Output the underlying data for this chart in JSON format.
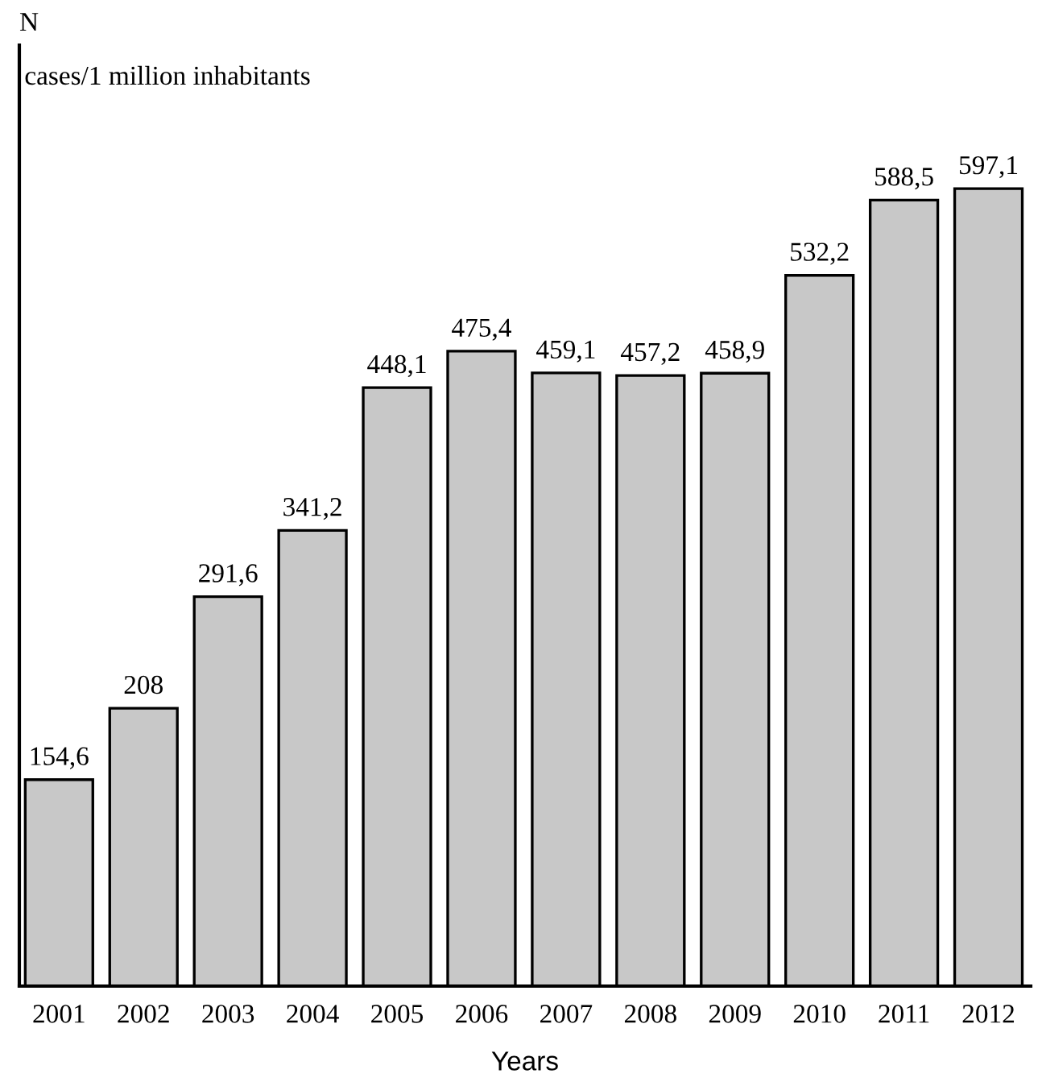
{
  "chart_data": {
    "type": "bar",
    "annotations": [
      "N"
    ],
    "subtitle": "cases/1 million inhabitants",
    "xlabel": "Years",
    "categories": [
      "2001",
      "2002",
      "2003",
      "2004",
      "2005",
      "2006",
      "2007",
      "2008",
      "2009",
      "2010",
      "2011",
      "2012"
    ],
    "values": [
      154.6,
      208,
      291.6,
      341.2,
      448.1,
      475.4,
      459.1,
      457.2,
      458.9,
      532.2,
      588.5,
      597.1
    ],
    "value_labels": [
      "154,6",
      "208",
      "291,6",
      "341,2",
      "448,1",
      "475,4",
      "459,1",
      "457,2",
      "458,9",
      "532,2",
      "588,5",
      "597,1"
    ],
    "color": "#c8c8c8",
    "grid": false,
    "legend": false
  }
}
